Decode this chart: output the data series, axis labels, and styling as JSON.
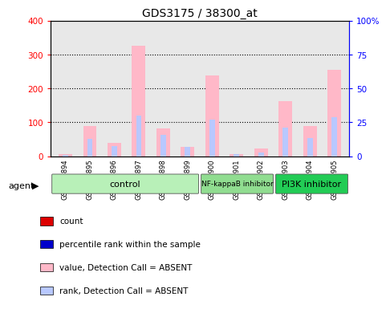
{
  "title": "GDS3175 / 38300_at",
  "samples": [
    "GSM242894",
    "GSM242895",
    "GSM242896",
    "GSM242897",
    "GSM242898",
    "GSM242899",
    "GSM242900",
    "GSM242901",
    "GSM242902",
    "GSM242903",
    "GSM242904",
    "GSM242905"
  ],
  "value_absent": [
    5,
    88,
    38,
    325,
    82,
    28,
    238,
    5,
    22,
    162,
    88,
    255
  ],
  "rank_absent": [
    1,
    13,
    7.5,
    30,
    15.5,
    7,
    27,
    1.2,
    2.5,
    21,
    13.5,
    29
  ],
  "ylim_left": [
    0,
    400
  ],
  "ylim_right": [
    0,
    100
  ],
  "yticks_left": [
    0,
    100,
    200,
    300,
    400
  ],
  "yticks_right": [
    0,
    25,
    50,
    75,
    100
  ],
  "ytick_labels_right": [
    "0",
    "25",
    "50",
    "75",
    "100%"
  ],
  "groups": [
    {
      "label": "control",
      "start": 0,
      "end": 6,
      "color": "#b8f0b8"
    },
    {
      "label": "NF-kappaB inhibitor",
      "start": 6,
      "end": 9,
      "color": "#90dd90"
    },
    {
      "label": "PI3K inhibitor",
      "start": 9,
      "end": 12,
      "color": "#22cc55"
    }
  ],
  "color_value_absent": "#ffb8c8",
  "color_rank_absent": "#b8c8ff",
  "color_count": "#dd0000",
  "color_percentile": "#0000cc",
  "background_plot": "#e8e8e8",
  "grid_color": "black",
  "agent_label": "agent"
}
